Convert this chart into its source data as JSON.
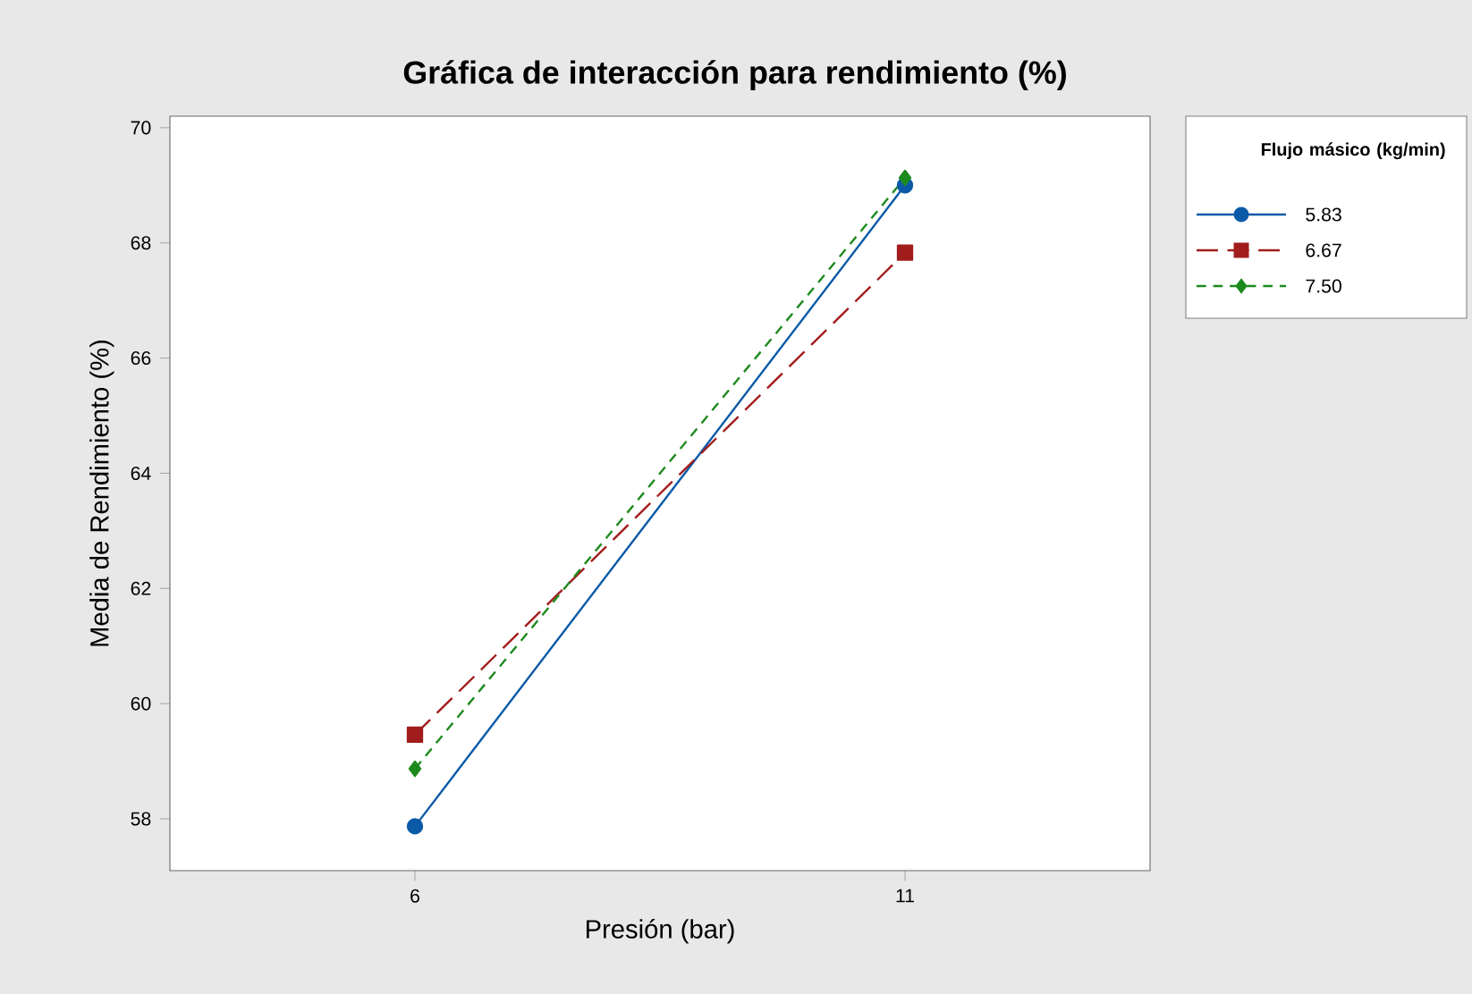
{
  "chart_data": {
    "type": "line",
    "title": "Gráfica de interacción para rendimiento (%)",
    "xlabel": "Presión (bar)",
    "ylabel": "Media de Rendimiento (%)",
    "legend_title": "Flujo másico (kg/min)",
    "categories": [
      "6",
      "11"
    ],
    "ylim": [
      57.1,
      70.2
    ],
    "yticks": [
      58,
      60,
      62,
      64,
      66,
      68,
      70
    ],
    "legend": "right",
    "grid": false,
    "series": [
      {
        "name": "5.83",
        "color": "#0b5aa8",
        "values": [
          57.87,
          69.0
        ],
        "marker": "circle",
        "line_style": "solid"
      },
      {
        "name": "6.67",
        "color": "#a11d1d",
        "values": [
          59.46,
          67.83
        ],
        "marker": "square",
        "line_style": "dashed"
      },
      {
        "name": "7.50",
        "color": "#1d8a1d",
        "values": [
          58.87,
          69.13
        ],
        "marker": "diamond",
        "line_style": "dotted"
      }
    ]
  }
}
